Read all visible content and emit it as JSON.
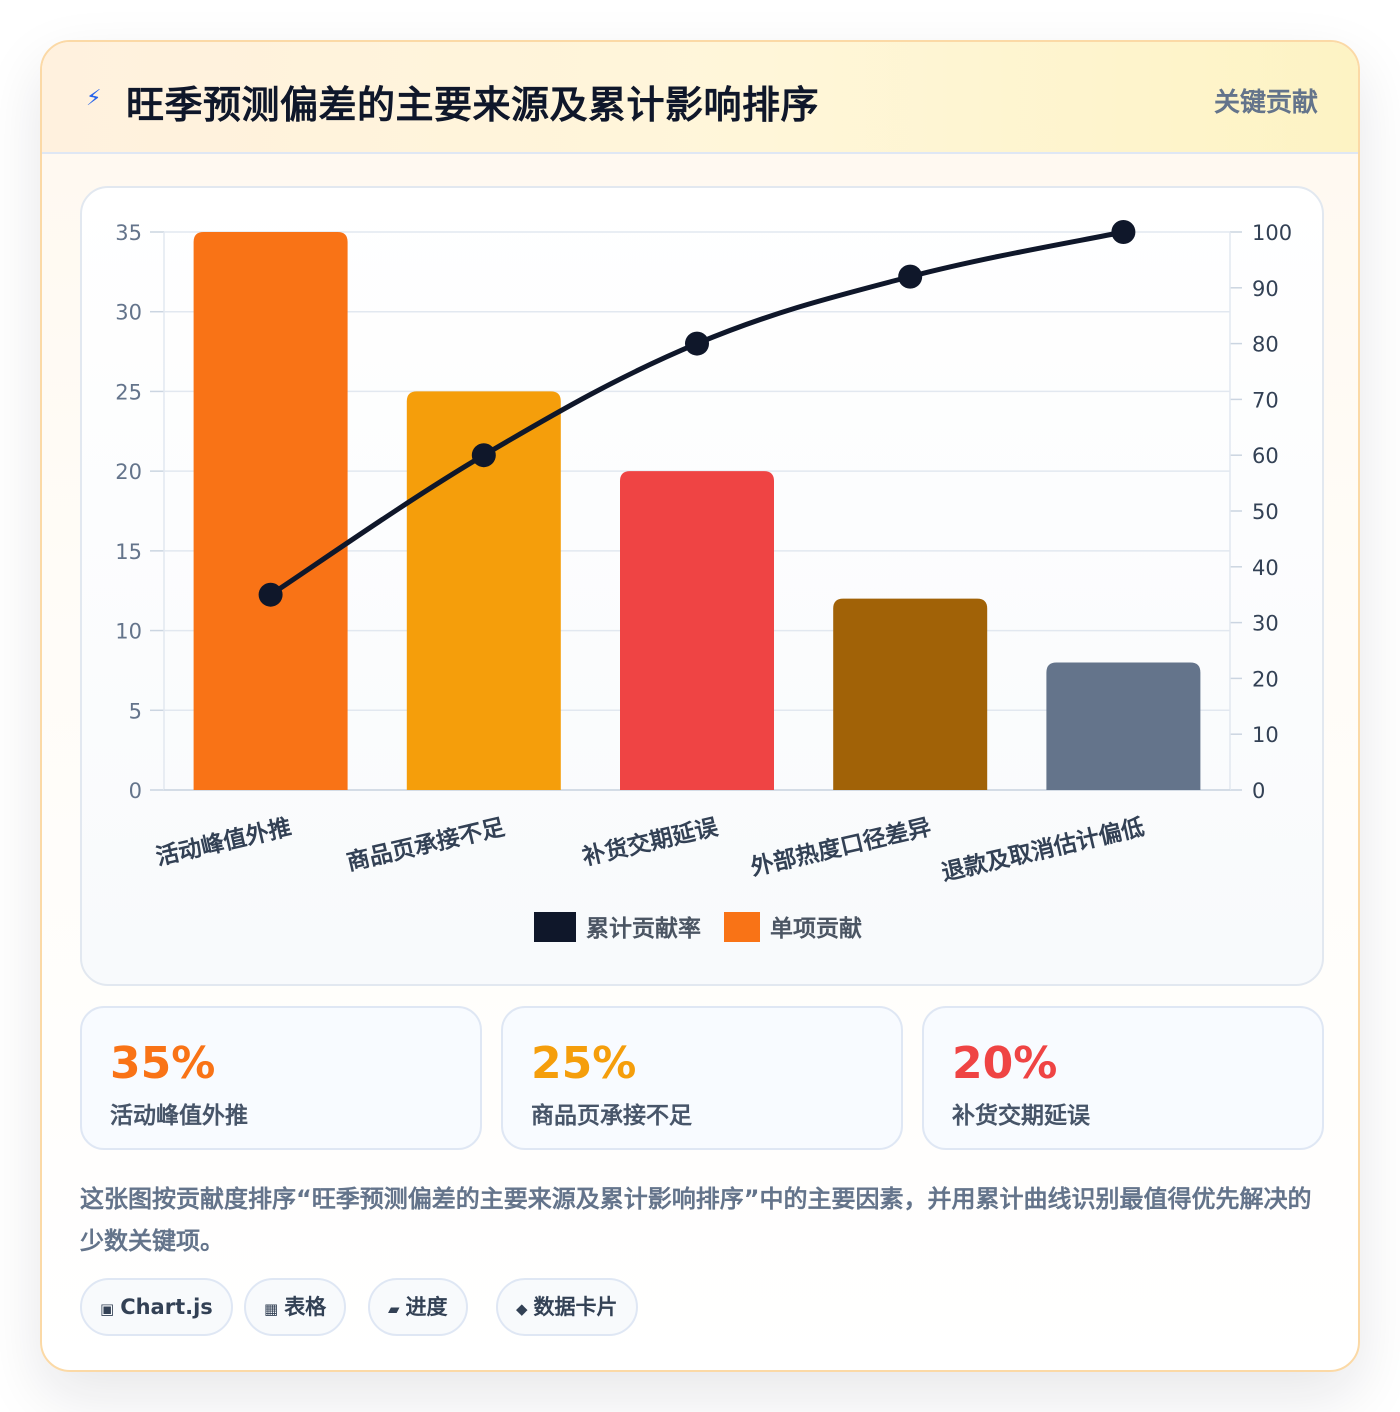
{
  "header": {
    "icon": "lightning-icon",
    "title": "旺季预测偏差的主要来源及累计影响排序",
    "badge": "关键贡献"
  },
  "chart_data": {
    "type": "bar",
    "categories": [
      "活动峰值外推",
      "商品页承接不足",
      "补货交期延误",
      "外部热度口径差异",
      "退款及取消估计偏低"
    ],
    "series": [
      {
        "name": "单项贡献",
        "type": "bar",
        "values": [
          35,
          25,
          20,
          12,
          8
        ],
        "colors": [
          "#f97316",
          "#f59e0b",
          "#ef4444",
          "#a16207",
          "#64748b"
        ]
      },
      {
        "name": "累计贡献率",
        "type": "line",
        "values": [
          35,
          60,
          80,
          92,
          100
        ],
        "color": "#0f172a",
        "axis": "right"
      }
    ],
    "y_left": {
      "range": [
        0,
        35
      ],
      "ticks": [
        0,
        5,
        10,
        15,
        20,
        25,
        30,
        35
      ]
    },
    "y_right": {
      "range": [
        0,
        100
      ],
      "ticks": [
        0,
        10,
        20,
        30,
        40,
        50,
        60,
        70,
        80,
        90,
        100
      ]
    },
    "legend": [
      {
        "label": "累计贡献率",
        "color": "#0f172a"
      },
      {
        "label": "单项贡献",
        "color": "#f97316"
      }
    ],
    "legend_position": "bottom",
    "grid": true
  },
  "kpis": [
    {
      "value": "35%",
      "label": "活动峰值外推",
      "color": "#f97316"
    },
    {
      "value": "25%",
      "label": "商品页承接不足",
      "color": "#f59e0b"
    },
    {
      "value": "20%",
      "label": "补货交期延误",
      "color": "#ef4444"
    }
  ],
  "description": "这张图按贡献度排序“旺季预测偏差的主要来源及累计影响排序”中的主要因素，并用累计曲线识别最值得优先解决的少数关键项。",
  "tags": [
    {
      "icon": "square-icon",
      "glyph": "▣",
      "label": "Chart.js"
    },
    {
      "icon": "table-icon",
      "glyph": "▦",
      "label": "表格"
    },
    {
      "icon": "progress-icon",
      "glyph": "▰",
      "label": "进度"
    },
    {
      "icon": "diamond-icon",
      "glyph": "◆",
      "label": "数据卡片"
    }
  ]
}
